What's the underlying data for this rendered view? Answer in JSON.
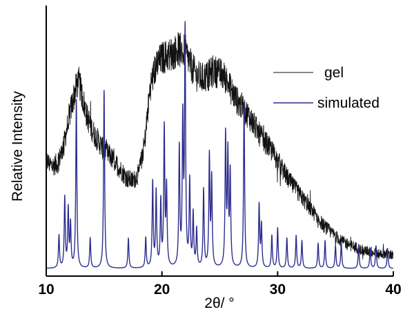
{
  "chart_data": {
    "type": "line",
    "xlabel": "2θ/ °",
    "ylabel": "Relative Intensity",
    "xlim": [
      10,
      40
    ],
    "ylim": [
      0,
      100
    ],
    "x_ticks": [
      "10",
      "20",
      "30",
      "40"
    ],
    "y_ticks_shown": false,
    "grid": false,
    "legend_position": "top-right",
    "series": [
      {
        "name": "gel",
        "color": "#111111",
        "noisy": true,
        "points": [
          [
            10.0,
            38
          ],
          [
            10.5,
            36
          ],
          [
            11.0,
            37
          ],
          [
            11.5,
            44
          ],
          [
            12.0,
            56
          ],
          [
            12.5,
            66
          ],
          [
            12.8,
            70
          ],
          [
            13.1,
            64
          ],
          [
            13.5,
            56
          ],
          [
            14.0,
            50
          ],
          [
            14.5,
            46
          ],
          [
            15.0,
            42
          ],
          [
            15.5,
            40
          ],
          [
            16.0,
            37
          ],
          [
            16.5,
            34
          ],
          [
            17.0,
            31
          ],
          [
            17.5,
            30
          ],
          [
            18.0,
            33
          ],
          [
            18.5,
            45
          ],
          [
            19.0,
            68
          ],
          [
            19.5,
            76
          ],
          [
            20.0,
            79
          ],
          [
            20.5,
            80
          ],
          [
            21.0,
            81
          ],
          [
            21.5,
            83
          ],
          [
            22.0,
            82
          ],
          [
            22.5,
            76
          ],
          [
            23.0,
            72
          ],
          [
            23.5,
            71
          ],
          [
            24.0,
            72
          ],
          [
            24.5,
            74
          ],
          [
            25.0,
            73
          ],
          [
            25.5,
            71
          ],
          [
            26.0,
            66
          ],
          [
            26.5,
            62
          ],
          [
            27.0,
            59
          ],
          [
            27.5,
            56
          ],
          [
            28.0,
            52
          ],
          [
            28.5,
            48
          ],
          [
            29.0,
            45
          ],
          [
            29.5,
            42
          ],
          [
            30.0,
            38
          ],
          [
            30.5,
            34
          ],
          [
            31.0,
            30
          ],
          [
            31.5,
            27
          ],
          [
            32.0,
            24
          ],
          [
            32.5,
            21
          ],
          [
            33.0,
            18
          ],
          [
            33.5,
            15
          ],
          [
            34.0,
            12
          ],
          [
            34.5,
            10
          ],
          [
            35.0,
            8
          ],
          [
            35.5,
            6
          ],
          [
            36.0,
            5
          ],
          [
            36.5,
            4
          ],
          [
            37.0,
            3
          ],
          [
            37.5,
            2
          ],
          [
            38.0,
            2
          ],
          [
            38.5,
            1
          ],
          [
            39.0,
            1
          ],
          [
            39.5,
            1
          ],
          [
            40.0,
            0
          ]
        ]
      },
      {
        "name": "simulated",
        "color": "#2b2b8e",
        "baseline": -5,
        "peaks": [
          [
            11.1,
            8
          ],
          [
            11.6,
            23
          ],
          [
            11.9,
            18
          ],
          [
            12.1,
            12
          ],
          [
            12.6,
            62
          ],
          [
            13.8,
            7
          ],
          [
            15.0,
            66
          ],
          [
            17.1,
            7
          ],
          [
            18.6,
            7
          ],
          [
            19.2,
            29
          ],
          [
            19.5,
            25
          ],
          [
            19.9,
            21
          ],
          [
            20.2,
            50
          ],
          [
            20.4,
            26
          ],
          [
            21.5,
            42
          ],
          [
            21.8,
            52
          ],
          [
            22.0,
            88
          ],
          [
            22.4,
            29
          ],
          [
            22.7,
            16
          ],
          [
            23.0,
            10
          ],
          [
            23.6,
            26
          ],
          [
            24.1,
            39
          ],
          [
            24.3,
            30
          ],
          [
            25.5,
            47
          ],
          [
            25.7,
            39
          ],
          [
            25.9,
            32
          ],
          [
            27.1,
            61
          ],
          [
            28.4,
            20
          ],
          [
            28.6,
            12
          ],
          [
            29.5,
            8
          ],
          [
            30.0,
            11
          ],
          [
            30.8,
            7
          ],
          [
            31.6,
            8
          ],
          [
            32.1,
            6
          ],
          [
            33.5,
            5
          ],
          [
            34.1,
            6
          ],
          [
            35.0,
            4
          ],
          [
            35.5,
            5
          ],
          [
            37.0,
            4
          ],
          [
            38.0,
            3
          ],
          [
            38.5,
            4
          ],
          [
            39.5,
            3
          ]
        ]
      }
    ]
  }
}
